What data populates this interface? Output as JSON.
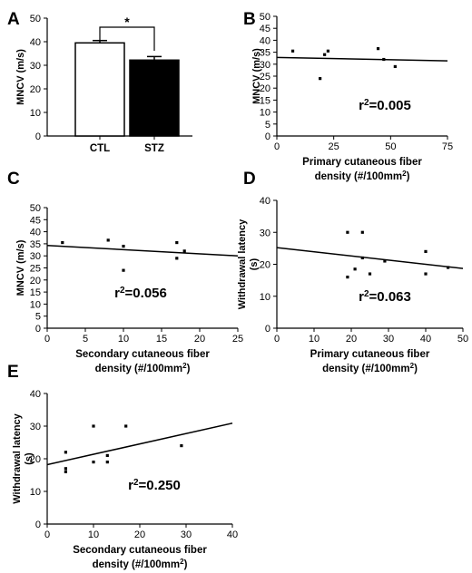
{
  "chart_data": [
    {
      "panel": "A",
      "type": "bar",
      "ylabel": "MNCV (m/s)",
      "categories": [
        "CTL",
        "STZ"
      ],
      "values": [
        39.5,
        32.2
      ],
      "errors": [
        1.0,
        1.5
      ],
      "bar_colors": [
        "#ffffff",
        "#000000"
      ],
      "ylim": [
        0,
        50
      ],
      "yticks": [
        0,
        10,
        20,
        30,
        40,
        50
      ],
      "significance": "*"
    },
    {
      "panel": "B",
      "type": "scatter",
      "xlabel": "Primary cutaneous fiber density (#/100mm2)",
      "xlabel_lines": [
        "Primary cutaneous fiber",
        "density (#/100mm",
        "2",
        ")"
      ],
      "ylabel": "MNCV (m/s)",
      "xlim": [
        0,
        75
      ],
      "ylim": [
        0,
        50
      ],
      "xticks": [
        0,
        25,
        50,
        75
      ],
      "yticks": [
        0,
        5,
        10,
        15,
        20,
        25,
        30,
        35,
        40,
        45,
        50
      ],
      "points": [
        [
          7,
          35.5
        ],
        [
          19,
          24
        ],
        [
          21,
          34
        ],
        [
          22.5,
          35.5
        ],
        [
          44.5,
          36.5
        ],
        [
          47,
          32
        ],
        [
          52,
          29
        ]
      ],
      "fit": [
        [
          0,
          32.8
        ],
        [
          75,
          31.4
        ]
      ],
      "r2_base": "r",
      "r2_exp": "2",
      "r2_value": "=0.005"
    },
    {
      "panel": "C",
      "type": "scatter",
      "xlabel": "Secondary cutaneous fiber density (#/100mm2)",
      "xlabel_lines": [
        "Secondary cutaneous fiber",
        "density (#/100mm",
        "2",
        ")"
      ],
      "ylabel": "MNCV (m/s)",
      "xlim": [
        0,
        25
      ],
      "ylim": [
        0,
        50
      ],
      "xticks": [
        0,
        5,
        10,
        15,
        20,
        25
      ],
      "yticks": [
        0,
        5,
        10,
        15,
        20,
        25,
        30,
        35,
        40,
        45,
        50
      ],
      "points": [
        [
          2,
          35.5
        ],
        [
          8,
          36.5
        ],
        [
          10,
          34
        ],
        [
          10,
          24
        ],
        [
          17,
          35.5
        ],
        [
          17,
          29
        ],
        [
          18,
          32
        ]
      ],
      "fit": [
        [
          0,
          34.3
        ],
        [
          25,
          30.0
        ]
      ],
      "r2_base": "r",
      "r2_exp": "2",
      "r2_value": "=0.056"
    },
    {
      "panel": "D",
      "type": "scatter",
      "xlabel": "Primary cutaneous fiber density (#/100mm2)",
      "xlabel_lines": [
        "Primary cutaneous fiber",
        "density (#/100mm",
        "2",
        ")"
      ],
      "ylabel": "Withdrawal latency (s)",
      "ylabel_lines": [
        "Withdrawal latency",
        "(s)"
      ],
      "xlim": [
        0,
        50
      ],
      "ylim": [
        0,
        40
      ],
      "xticks": [
        0,
        10,
        20,
        30,
        40,
        50
      ],
      "yticks": [
        0,
        10,
        20,
        30,
        40
      ],
      "points": [
        [
          19,
          30
        ],
        [
          19,
          16
        ],
        [
          21,
          18.5
        ],
        [
          23,
          30
        ],
        [
          23,
          22
        ],
        [
          25,
          17
        ],
        [
          29,
          21
        ],
        [
          40,
          24
        ],
        [
          40,
          17
        ],
        [
          46,
          19
        ]
      ],
      "fit": [
        [
          0,
          25.2
        ],
        [
          50,
          18.7
        ]
      ],
      "r2_base": "r",
      "r2_exp": "2",
      "r2_value": "=0.063"
    },
    {
      "panel": "E",
      "type": "scatter",
      "xlabel": "Secondary cutaneous fiber density (#/100mm2)",
      "xlabel_lines": [
        "Secondary cutaneous fiber",
        "density (#/100mm",
        "2",
        ")"
      ],
      "ylabel": "Withdrawal latency (s)",
      "ylabel_lines": [
        "Withdrawal latency",
        "(s)"
      ],
      "xlim": [
        0,
        40
      ],
      "ylim": [
        0,
        40
      ],
      "xticks": [
        0,
        10,
        20,
        30,
        40
      ],
      "yticks": [
        0,
        10,
        20,
        30,
        40
      ],
      "points": [
        [
          4,
          22
        ],
        [
          4,
          17
        ],
        [
          4,
          16
        ],
        [
          10,
          30
        ],
        [
          10,
          19
        ],
        [
          13,
          21
        ],
        [
          13,
          19
        ],
        [
          17,
          30
        ],
        [
          29,
          24
        ]
      ],
      "fit": [
        [
          0,
          18.2
        ],
        [
          40,
          30.9
        ]
      ],
      "r2_base": "r",
      "r2_exp": "2",
      "r2_value": "=0.250"
    }
  ]
}
